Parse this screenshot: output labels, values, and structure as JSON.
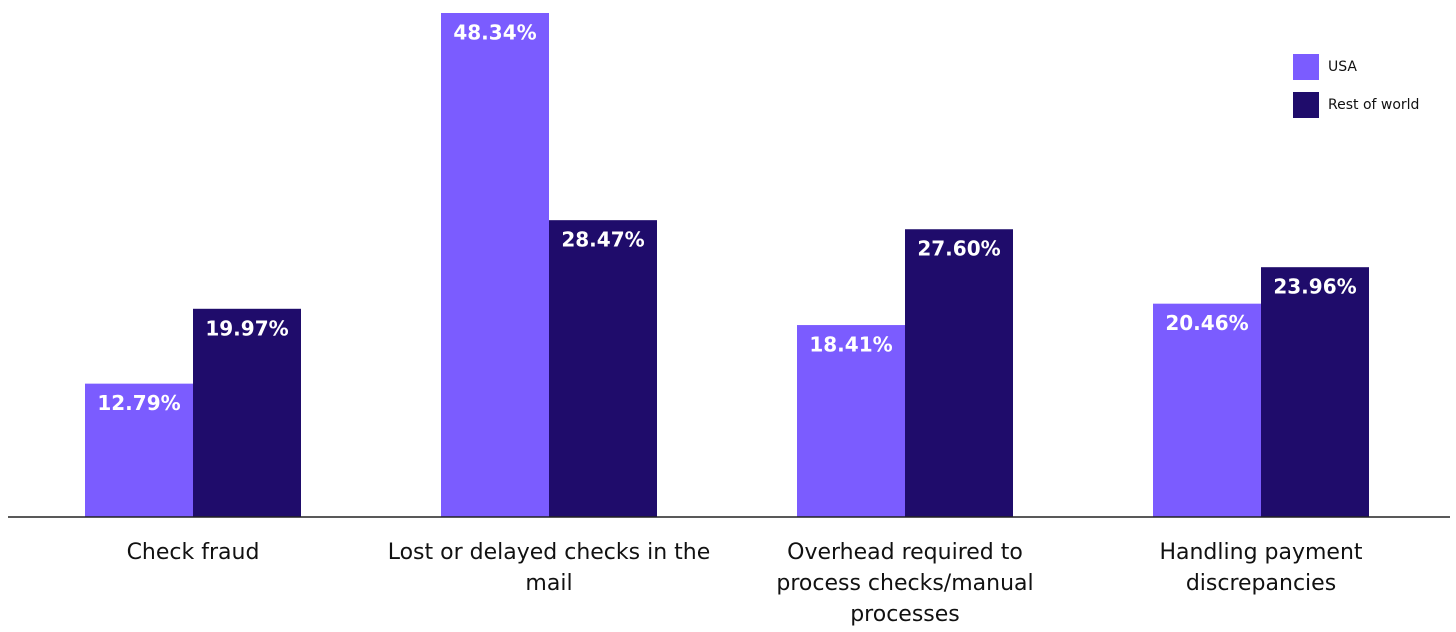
{
  "chart_data": {
    "type": "bar",
    "categories": [
      "Check fraud",
      "Lost or delayed checks in the mail",
      "Overhead required to process checks/manual processes",
      "Handling payment discrepancies"
    ],
    "series": [
      {
        "name": "USA",
        "color": "#7b5cff",
        "values": [
          12.79,
          48.34,
          18.41,
          20.46
        ],
        "value_labels": [
          "12.79%",
          "48.34%",
          "18.41%",
          "20.46%"
        ]
      },
      {
        "name": "Rest of world",
        "color": "#1f0c6b",
        "values": [
          19.97,
          28.47,
          27.6,
          23.96
        ],
        "value_labels": [
          "19.97%",
          "28.47%",
          "27.60%",
          "23.96%"
        ]
      }
    ],
    "legend": "top-right"
  }
}
